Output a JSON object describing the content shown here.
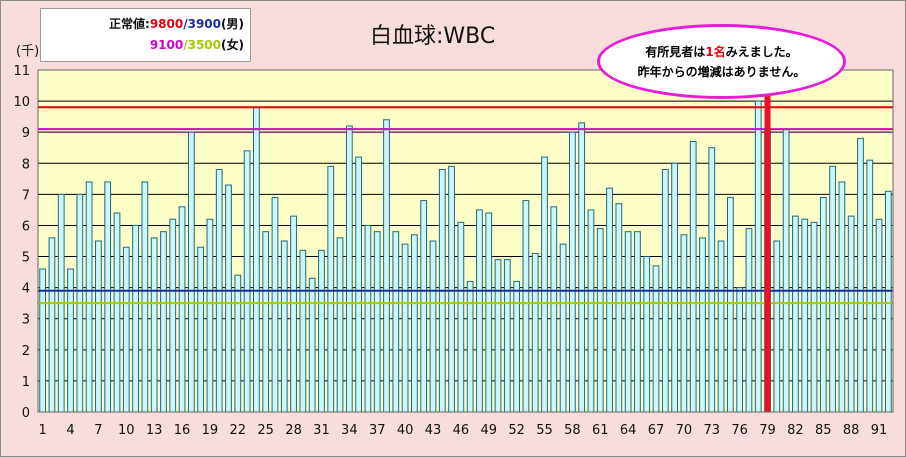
{
  "legend": {
    "prefix": "正常値:",
    "male_value": "9800",
    "slash": "/",
    "male_low": "3900",
    "male_label": "(男)",
    "female_value": "9100",
    "female_low": "3500",
    "female_label": "(女)"
  },
  "annotation": {
    "line1_pre": "有所見者は",
    "line1_count": "1名",
    "line1_post": "みえました。",
    "line2": "昨年からの増減はありません。"
  },
  "colors": {
    "male_upper": "#e8000b",
    "male_lower": "#1a2f9e",
    "female_upper": "#d000d0",
    "female_lower": "#a8c800",
    "highlight": "#e8102a",
    "bar_fill": "#cdf6fb",
    "bar_stroke": "#1a6b87",
    "plot_bg": "#fdfdc8"
  },
  "chart_data": {
    "type": "bar",
    "title": "白血球:WBC",
    "ylabel": "(千)",
    "ylim": [
      0,
      11
    ],
    "yticks": [
      0,
      1,
      2,
      3,
      4,
      5,
      6,
      7,
      8,
      9,
      10,
      11
    ],
    "xticks": [
      "1",
      "4",
      "7",
      "10",
      "13",
      "16",
      "19",
      "22",
      "25",
      "28",
      "31",
      "34",
      "37",
      "40",
      "43",
      "46",
      "49",
      "52",
      "55",
      "58",
      "61",
      "64",
      "67",
      "70",
      "73",
      "76",
      "79",
      "82",
      "85",
      "88",
      "91"
    ],
    "grid": true,
    "x": [
      1,
      2,
      3,
      4,
      5,
      6,
      7,
      8,
      9,
      10,
      11,
      12,
      13,
      14,
      15,
      16,
      17,
      18,
      19,
      20,
      21,
      22,
      23,
      24,
      25,
      26,
      27,
      28,
      29,
      30,
      31,
      32,
      33,
      34,
      35,
      36,
      37,
      38,
      39,
      40,
      41,
      42,
      43,
      44,
      45,
      46,
      47,
      48,
      49,
      50,
      51,
      52,
      53,
      54,
      55,
      56,
      57,
      58,
      59,
      60,
      61,
      62,
      63,
      64,
      65,
      66,
      67,
      68,
      69,
      70,
      71,
      72,
      73,
      74,
      75,
      76,
      77,
      78,
      79,
      80,
      81,
      82,
      83,
      84,
      85,
      86,
      87,
      88,
      89,
      90,
      91,
      92
    ],
    "values": [
      4.6,
      5.6,
      7.0,
      4.6,
      7.0,
      7.4,
      5.5,
      7.4,
      6.4,
      5.3,
      6.0,
      7.4,
      5.6,
      5.8,
      6.2,
      6.6,
      9.0,
      5.3,
      6.2,
      7.8,
      7.3,
      4.4,
      8.4,
      9.8,
      5.8,
      6.9,
      5.5,
      6.3,
      5.2,
      4.3,
      5.2,
      7.9,
      5.6,
      9.2,
      8.2,
      6.0,
      5.8,
      9.4,
      5.8,
      5.4,
      5.7,
      6.8,
      5.5,
      7.8,
      7.9,
      6.1,
      4.2,
      6.5,
      6.4,
      4.9,
      4.9,
      4.2,
      6.8,
      5.1,
      8.2,
      6.6,
      5.4,
      9.0,
      9.3,
      6.5,
      5.9,
      7.2,
      6.7,
      5.8,
      5.8,
      5.0,
      4.7,
      7.8,
      8.0,
      5.7,
      8.7,
      5.6,
      8.5,
      5.5,
      6.9,
      4.0,
      5.9,
      10.0,
      9.1,
      5.5,
      9.1,
      6.3,
      6.2,
      6.1,
      6.9,
      7.9,
      7.4,
      6.3,
      8.8,
      8.1,
      6.2,
      7.1
    ],
    "highlight_index": 78,
    "reference_lines": [
      {
        "name": "男 上限",
        "value": 9.8
      },
      {
        "name": "男 下限",
        "value": 3.9
      },
      {
        "name": "女 上限",
        "value": 9.1
      },
      {
        "name": "女 下限",
        "value": 3.5
      }
    ]
  }
}
